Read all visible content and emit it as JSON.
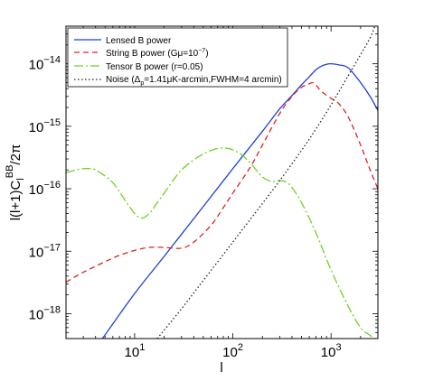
{
  "chart_data": {
    "type": "line",
    "xscale": "log",
    "yscale": "log",
    "xlim": [
      2,
      3000
    ],
    "ylim": [
      4e-19,
      4e-14
    ],
    "xlabel": "l",
    "ylabel": "l(l+1)C_l^BB/2π",
    "x_ticks": [
      {
        "value": 10,
        "base": "10",
        "exp": "1"
      },
      {
        "value": 100,
        "base": "10",
        "exp": "2"
      },
      {
        "value": 1000,
        "base": "10",
        "exp": "3"
      }
    ],
    "y_ticks": [
      {
        "value": 1e-18,
        "base": "10",
        "exp": "−18"
      },
      {
        "value": 1e-17,
        "base": "10",
        "exp": "−17"
      },
      {
        "value": 1e-16,
        "base": "10",
        "exp": "−16"
      },
      {
        "value": 1e-15,
        "base": "10",
        "exp": "−15"
      },
      {
        "value": 1e-14,
        "base": "10",
        "exp": "−14"
      }
    ],
    "legend_position": "top-left",
    "series": [
      {
        "name": "Lensed B power",
        "color": "#1f3fd6",
        "dash": "solid",
        "x": [
          4.7,
          10,
          20,
          50,
          100,
          200,
          300,
          400,
          500,
          600,
          700,
          800,
          900,
          1000,
          1200,
          1500,
          2000,
          2500,
          3000
        ],
        "y": [
          4e-19,
          2.1e-18,
          8.3e-18,
          5.2e-17,
          2.1e-16,
          8.3e-16,
          1.9e-15,
          3.1e-15,
          4.6e-15,
          6.2e-15,
          8e-15,
          9.2e-15,
          9.8e-15,
          1e-14,
          9.6e-15,
          8.6e-15,
          5e-15,
          3e-15,
          1.8e-15
        ]
      },
      {
        "name": "String B power (Gμ=10^−7)",
        "color": "#e02020",
        "dash": "6,4",
        "x": [
          2,
          3,
          5,
          7,
          10,
          14,
          20,
          30,
          40,
          60,
          80,
          100,
          150,
          200,
          300,
          400,
          500,
          600,
          650,
          700,
          800,
          1000,
          1200,
          1500,
          2000,
          2500,
          3000
        ],
        "y": [
          3.2e-18,
          4.6e-18,
          6.8e-18,
          8.6e-18,
          1.03e-17,
          1.15e-17,
          1.15e-17,
          1.12e-17,
          1.4e-17,
          2.6e-17,
          5e-17,
          8.5e-17,
          2.2e-16,
          5e-16,
          1.6e-15,
          3e-15,
          4.2e-15,
          4.8e-15,
          5e-15,
          4.6e-15,
          3.6e-15,
          2.8e-15,
          2.3e-15,
          1.4e-15,
          5e-16,
          2e-16,
          1e-16
        ]
      },
      {
        "name": "Tensor B power (r=0.05)",
        "color": "#6fd21f",
        "dash": "10,3,2,3",
        "x": [
          2,
          2.5,
          3,
          3.5,
          4,
          5,
          6,
          7,
          8,
          9,
          10,
          11,
          12,
          13,
          15,
          17,
          20,
          25,
          30,
          40,
          50,
          60,
          70,
          80,
          90,
          100,
          120,
          150,
          200,
          250,
          300,
          350,
          400,
          500,
          700,
          1000,
          1500,
          2000,
          2500,
          3000
        ],
        "y": [
          1.8e-16,
          2e-16,
          2.1e-16,
          2.1e-16,
          2e-16,
          1.6e-16,
          1.25e-16,
          9e-17,
          6.5e-17,
          5e-17,
          4e-17,
          3.5e-17,
          3.4e-17,
          3.6e-17,
          4.5e-17,
          6e-17,
          8.5e-17,
          1.4e-16,
          2e-16,
          2.9e-16,
          3.6e-16,
          4.1e-16,
          4.4e-16,
          4.5e-16,
          4.4e-16,
          4.2e-16,
          3.6e-16,
          2.6e-16,
          1.55e-16,
          1.3e-16,
          1.35e-16,
          1.28e-16,
          1.05e-16,
          6e-17,
          2e-17,
          5e-18,
          1.3e-18,
          6e-19,
          4.5e-19,
          3.5e-19
        ]
      },
      {
        "name": "Noise (Δ_p=1.41μK-arcmin,FWHM=4 arcmin)",
        "color": "#222222",
        "dash": "1.5,2.5",
        "x": [
          17,
          30,
          50,
          100,
          200,
          300,
          500,
          700,
          1000,
          1500,
          2000,
          2500,
          2800
        ],
        "y": [
          4e-19,
          1.2e-18,
          3.4e-18,
          1.4e-17,
          5.8e-17,
          1.35e-16,
          4.1e-16,
          9e-16,
          2.2e-15,
          6.5e-15,
          1.4e-14,
          2.6e-14,
          4e-14
        ]
      }
    ]
  }
}
